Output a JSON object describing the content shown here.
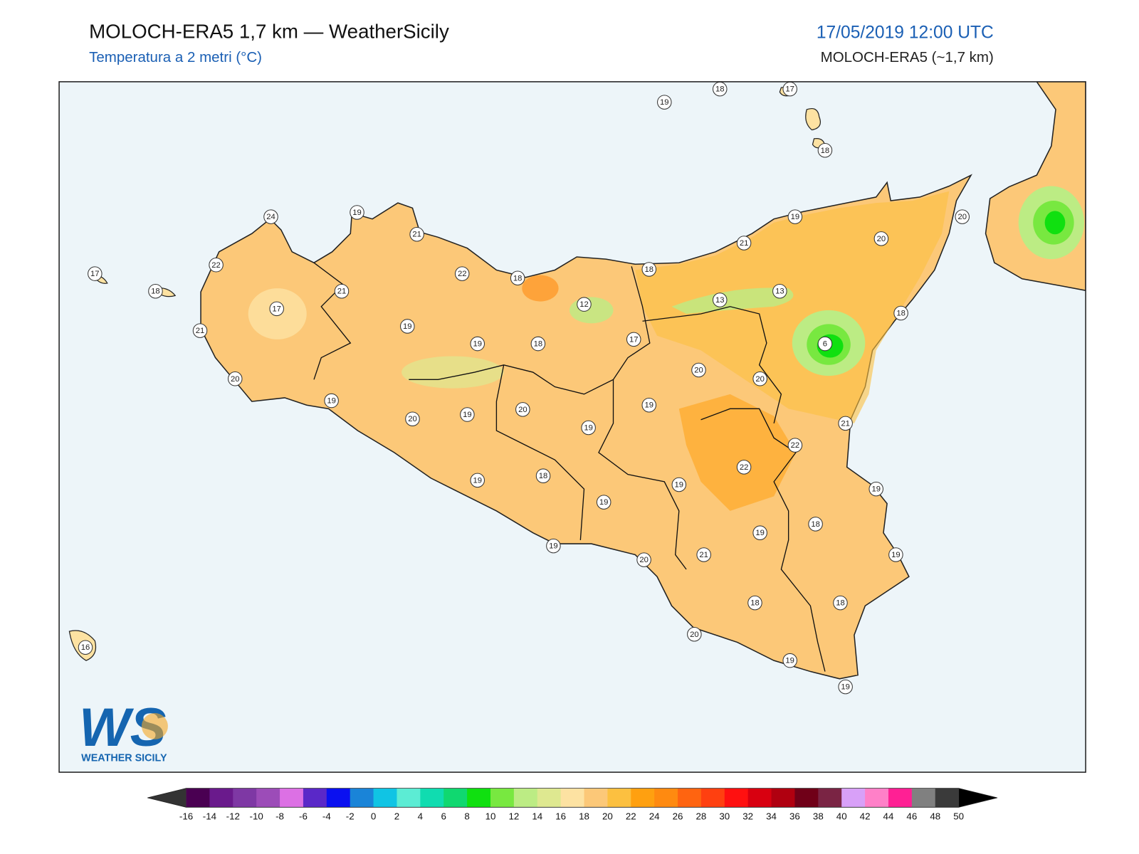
{
  "header": {
    "title": "MOLOCH-ERA5 1,7 km — WeatherSicily",
    "subtitle": "Temperatura a 2 metri (°C)",
    "datetime": "17/05/2019 12:00 UTC",
    "model": "MOLOCH-ERA5 (~1,7 km)"
  },
  "map": {
    "stations": [
      19,
      18,
      17,
      18,
      24,
      19,
      21,
      19,
      20,
      20,
      21,
      22,
      17,
      18,
      22,
      18,
      18,
      21,
      12,
      13,
      13,
      17,
      18,
      21,
      19,
      19,
      18,
      17,
      6,
      20,
      20,
      20,
      19,
      20,
      19,
      20,
      19,
      19,
      21,
      22,
      22,
      18,
      19,
      19,
      19,
      19,
      18,
      19,
      19,
      21,
      20,
      19,
      18,
      18,
      20,
      16,
      19,
      19
    ]
  },
  "logo": {
    "mark": "WS",
    "text": "WEATHER SICILY"
  },
  "colorbar": {
    "ticks": [
      -16,
      -14,
      -12,
      -10,
      -8,
      -6,
      -4,
      -2,
      0,
      2,
      4,
      6,
      8,
      10,
      12,
      14,
      16,
      18,
      20,
      22,
      24,
      26,
      28,
      30,
      32,
      34,
      36,
      38,
      40,
      42,
      44,
      46,
      48,
      50
    ],
    "colors": [
      "#4a0052",
      "#6a1a8c",
      "#7e38a4",
      "#9c4cb8",
      "#dc70e4",
      "#5a28c8",
      "#0a10f0",
      "#1a84d8",
      "#10c4e4",
      "#5cecd4",
      "#10dcb0",
      "#10d870",
      "#10e010",
      "#78e840",
      "#bcec84",
      "#dee890",
      "#fde2a2",
      "#fcc878",
      "#fcc040",
      "#ffa010",
      "#ff8a10",
      "#ff6410",
      "#ff4010",
      "#ff1010",
      "#d80010",
      "#b00010",
      "#700018",
      "#7a2444",
      "#d8a0f8",
      "#ff80c8",
      "#ff2094",
      "#808080",
      "#3a3a3a"
    ],
    "under_color": "#333333",
    "over_color": "#000000"
  }
}
